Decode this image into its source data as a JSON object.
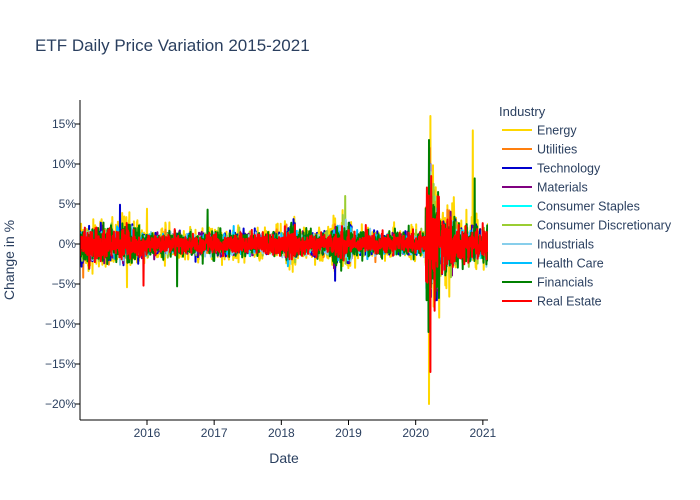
{
  "chart_data": {
    "type": "line",
    "title": "ETF Daily Price Variation 2015-2021",
    "xlabel": "Date",
    "ylabel": "Change in %",
    "x_range": [
      "2015-01-02",
      "2021-01-29"
    ],
    "x_ticks": [
      "2016",
      "2017",
      "2018",
      "2019",
      "2020",
      "2021"
    ],
    "ylim": [
      -22,
      18
    ],
    "y_ticks": [
      15,
      10,
      5,
      0,
      -5,
      -10,
      -15,
      -20
    ],
    "y_tick_labels": [
      "15%",
      "10%",
      "5%",
      "0%",
      "−5%",
      "−10%",
      "−15%",
      "−20%"
    ],
    "grid": false,
    "legend_title": "Industry",
    "legend_position": "right",
    "series": [
      {
        "name": "Energy",
        "color": "#FFD700",
        "base_amp": 1.8,
        "peak": {
          "x": 2020.22,
          "y": 16.0
        },
        "trough": {
          "x": 2020.2,
          "y": -20.0
        },
        "extra_peaks": [
          {
            "x": 2020.85,
            "y": 14.2
          },
          {
            "x": 2020.35,
            "y": -9.2
          },
          {
            "x": 2015.7,
            "y": -5.4
          },
          {
            "x": 2016.0,
            "y": 4.4
          }
        ]
      },
      {
        "name": "Utilities",
        "color": "#FF7F0E",
        "base_amp": 1.0,
        "peak": {
          "x": 2020.21,
          "y": 12.0
        },
        "trough": {
          "x": 2020.2,
          "y": -9.0
        },
        "extra_peaks": [
          {
            "x": 2015.05,
            "y": -4.2
          }
        ]
      },
      {
        "name": "Technology",
        "color": "#0000CD",
        "base_amp": 1.2,
        "peak": {
          "x": 2020.2,
          "y": 11.0
        },
        "trough": {
          "x": 2020.21,
          "y": -9.5
        },
        "extra_peaks": [
          {
            "x": 2015.6,
            "y": 4.9
          },
          {
            "x": 2018.8,
            "y": -4.6
          }
        ]
      },
      {
        "name": "Materials",
        "color": "#800080",
        "base_amp": 1.1,
        "peak": {
          "x": 2020.22,
          "y": 10.0
        },
        "trough": {
          "x": 2020.2,
          "y": -8.0
        },
        "extra_peaks": []
      },
      {
        "name": "Consumer Staples",
        "color": "#00FFFF",
        "base_amp": 0.8,
        "peak": {
          "x": 2020.21,
          "y": 8.0
        },
        "trough": {
          "x": 2020.2,
          "y": -6.0
        },
        "extra_peaks": []
      },
      {
        "name": "Consumer Discretionary",
        "color": "#9ACD32",
        "base_amp": 1.1,
        "peak": {
          "x": 2020.22,
          "y": 9.0
        },
        "trough": {
          "x": 2020.2,
          "y": -9.0
        },
        "extra_peaks": [
          {
            "x": 2018.95,
            "y": 6.0
          }
        ]
      },
      {
        "name": "Industrials",
        "color": "#87CEEB",
        "base_amp": 1.0,
        "peak": {
          "x": 2020.21,
          "y": 10.0
        },
        "trough": {
          "x": 2020.2,
          "y": -8.5
        },
        "extra_peaks": []
      },
      {
        "name": "Health Care",
        "color": "#00BFFF",
        "base_amp": 0.9,
        "peak": {
          "x": 2020.22,
          "y": 7.0
        },
        "trough": {
          "x": 2020.2,
          "y": -6.5
        },
        "extra_peaks": []
      },
      {
        "name": "Financials",
        "color": "#008000",
        "base_amp": 1.3,
        "peak": {
          "x": 2020.2,
          "y": 13.0
        },
        "trough": {
          "x": 2020.19,
          "y": -11.0
        },
        "extra_peaks": [
          {
            "x": 2020.88,
            "y": 8.2
          },
          {
            "x": 2016.45,
            "y": -5.3
          },
          {
            "x": 2016.9,
            "y": 4.3
          }
        ]
      },
      {
        "name": "Real Estate",
        "color": "#FF0000",
        "base_amp": 1.1,
        "peak": {
          "x": 2020.23,
          "y": 8.5
        },
        "trough": {
          "x": 2020.22,
          "y": -16.0
        },
        "extra_peaks": [
          {
            "x": 2015.95,
            "y": -5.2
          }
        ]
      }
    ]
  }
}
